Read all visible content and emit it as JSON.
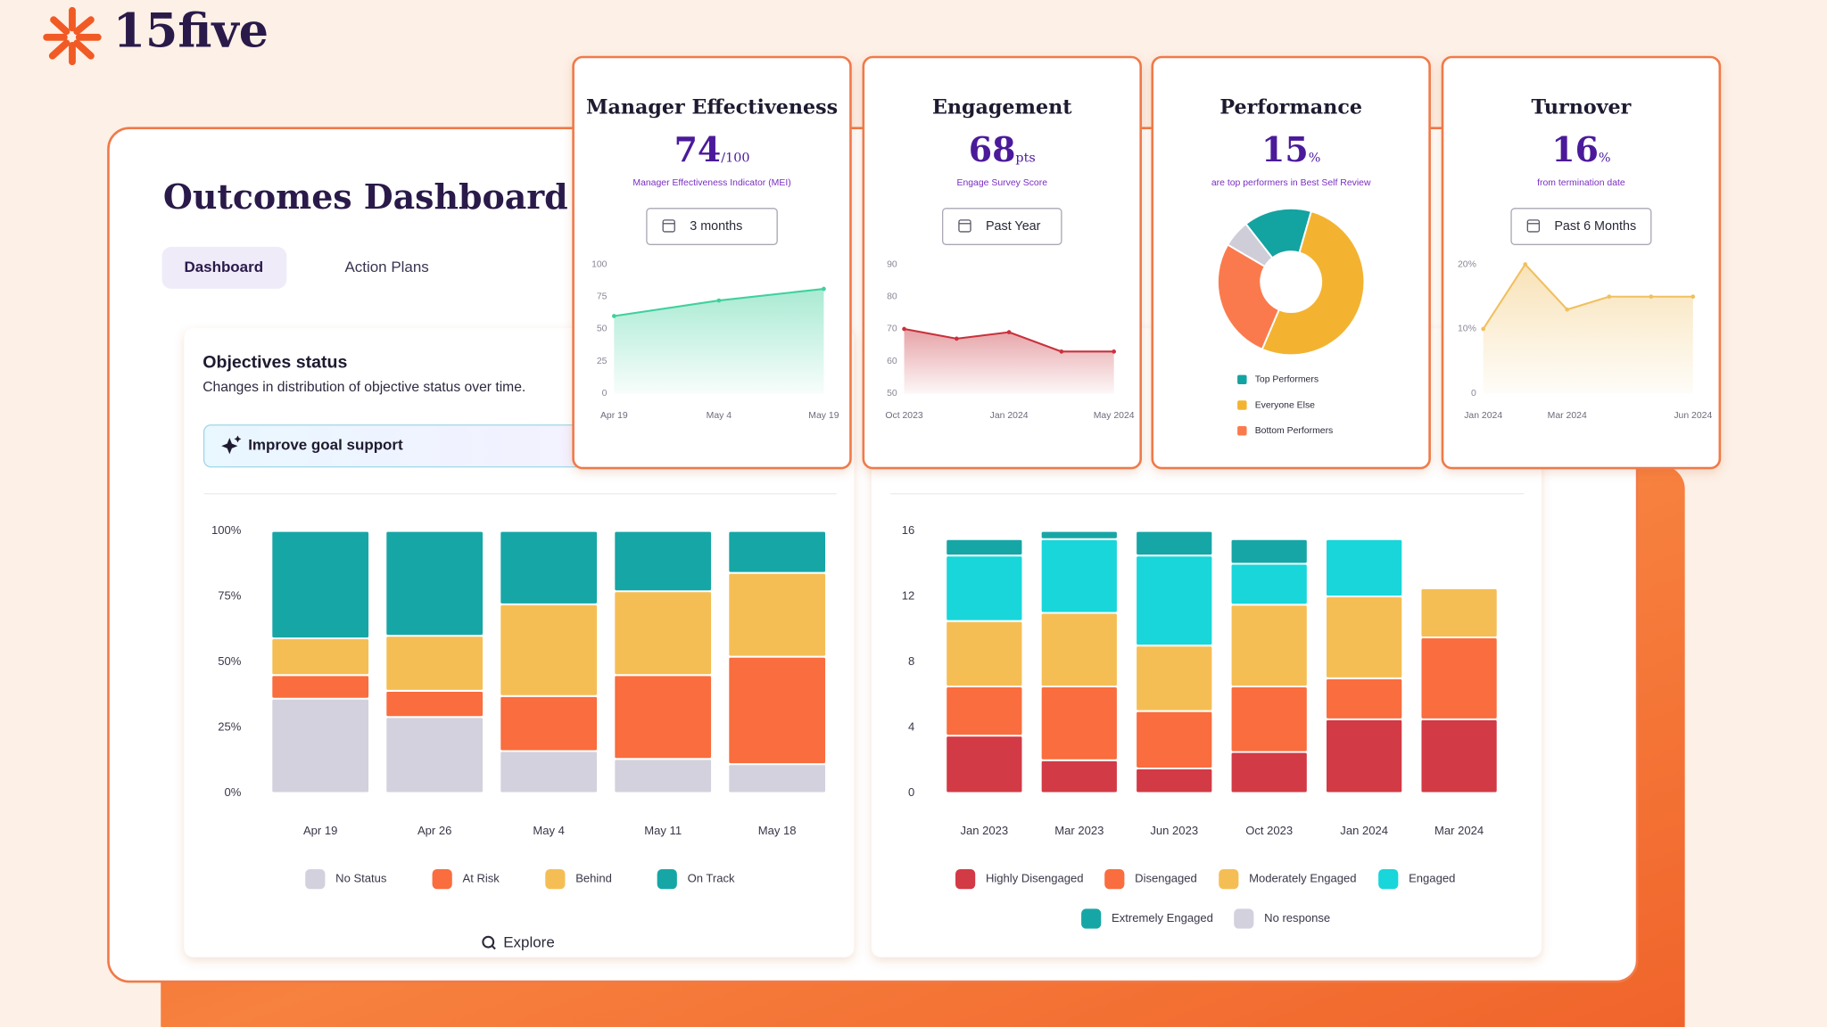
{
  "logo": {
    "text": "15five"
  },
  "dashboard": {
    "title": "Outcomes Dashboard",
    "tabs": [
      "Dashboard",
      "Action Plans"
    ],
    "objectives": {
      "title": "Objectives status",
      "subtitle": "Changes in distribution of objective status over time.",
      "button": "Improve goal support",
      "explore": "Explore"
    }
  },
  "chart_data": [
    {
      "type": "line",
      "title": "Manager Effectiveness",
      "metric": 74,
      "unit": "/100",
      "caption": "Manager Effectiveness Indicator (MEI)",
      "period": "3 months",
      "categories": [
        "Apr 19",
        "May 4",
        "May 19"
      ],
      "values": [
        60,
        72,
        81
      ],
      "color": "#3fd19d",
      "ylim": [
        0,
        100
      ],
      "yticks": [
        0,
        25,
        50,
        75,
        100
      ],
      "grid": false
    },
    {
      "type": "line",
      "title": "Engagement",
      "metric": 68,
      "unit": "pts",
      "caption": "Engage Survey Score",
      "period": "Past Year",
      "categories": [
        "Oct 2023",
        null,
        "Jan 2024",
        null,
        "May 2024"
      ],
      "values": [
        70,
        67,
        69,
        63,
        63
      ],
      "color": "#c8323c",
      "ylim": [
        50,
        90
      ],
      "yticks": [
        50,
        60,
        70,
        80,
        90
      ],
      "grid": false
    },
    {
      "type": "pie",
      "title": "Performance",
      "metric": 15,
      "unit": "%",
      "caption": "are top performers in Best Self Review",
      "categories": [
        "Top Performers",
        "Everyone Else",
        "Bottom Performers",
        null
      ],
      "values": [
        15,
        52,
        27,
        6
      ],
      "colors": [
        "#13a3a1",
        "#f3b331",
        "#fb7a4d",
        "#cfcdd8"
      ]
    },
    {
      "type": "line",
      "title": "Turnover",
      "metric": 16,
      "unit": "%",
      "caption": "from termination date",
      "period": "Past 6 Months",
      "categories": [
        "Jan 2024",
        null,
        "Mar 2024",
        null,
        null,
        "Jun 2024"
      ],
      "values": [
        10,
        20,
        13,
        15,
        15,
        15
      ],
      "color": "#f0c060",
      "ylim": [
        0,
        20
      ],
      "yticks": [
        0,
        {
          "value": 10,
          "label": "10%"
        },
        {
          "value": 20,
          "label": "20%"
        }
      ],
      "grid": false
    },
    {
      "type": "stacked_bar",
      "categories": [
        "Apr 19",
        "Apr 26",
        "May 4",
        "May 11",
        "May 18"
      ],
      "ylim": [
        0,
        100
      ],
      "yticks": [
        {
          "value": 0,
          "label": "0%"
        },
        {
          "value": 25,
          "label": "25%"
        },
        {
          "value": 50,
          "label": "50%"
        },
        {
          "value": 75,
          "label": "75%"
        },
        {
          "value": 100,
          "label": "100%"
        }
      ],
      "grid": false,
      "series": [
        {
          "name": "No Status",
          "color": "#d3d1dd",
          "values": [
            36,
            29,
            16,
            13,
            11
          ]
        },
        {
          "name": "At Risk",
          "color": "#f96d3e",
          "values": [
            9,
            10,
            21,
            32,
            41
          ]
        },
        {
          "name": "Behind",
          "color": "#f5be55",
          "values": [
            14,
            21,
            35,
            32,
            32
          ]
        },
        {
          "name": "On Track",
          "color": "#17a6a6",
          "values": [
            41,
            40,
            28,
            23,
            16
          ]
        }
      ]
    },
    {
      "type": "stacked_bar",
      "categories": [
        "Jan 2023",
        "Mar 2023",
        "Jun 2023",
        "Oct 2023",
        "Jan 2024",
        "Mar 2024"
      ],
      "ylim": [
        0,
        16
      ],
      "yticks": [
        0,
        4,
        8,
        12,
        16
      ],
      "grid": false,
      "series": [
        {
          "name": "Highly Disengaged",
          "color": "#d23a45",
          "values": [
            3.5,
            2,
            1.5,
            2.5,
            4.5,
            4.5
          ]
        },
        {
          "name": "Disengaged",
          "color": "#f96d3e",
          "values": [
            3,
            4.5,
            3.5,
            4,
            2.5,
            5
          ]
        },
        {
          "name": "Moderately Engaged",
          "color": "#f5be55",
          "values": [
            4,
            4.5,
            4,
            5,
            5,
            3
          ]
        },
        {
          "name": "Engaged",
          "color": "#18d6da",
          "values": [
            4,
            4.5,
            5.5,
            2.5,
            3.5,
            0
          ]
        },
        {
          "name": "Extremely Engaged",
          "color": "#17a6a6",
          "values": [
            1,
            0.5,
            1.5,
            1.5,
            0,
            0
          ]
        },
        {
          "name": "No response",
          "color": "#d3d1dd",
          "values": [
            0,
            0,
            0,
            0,
            0,
            0
          ]
        }
      ]
    }
  ]
}
